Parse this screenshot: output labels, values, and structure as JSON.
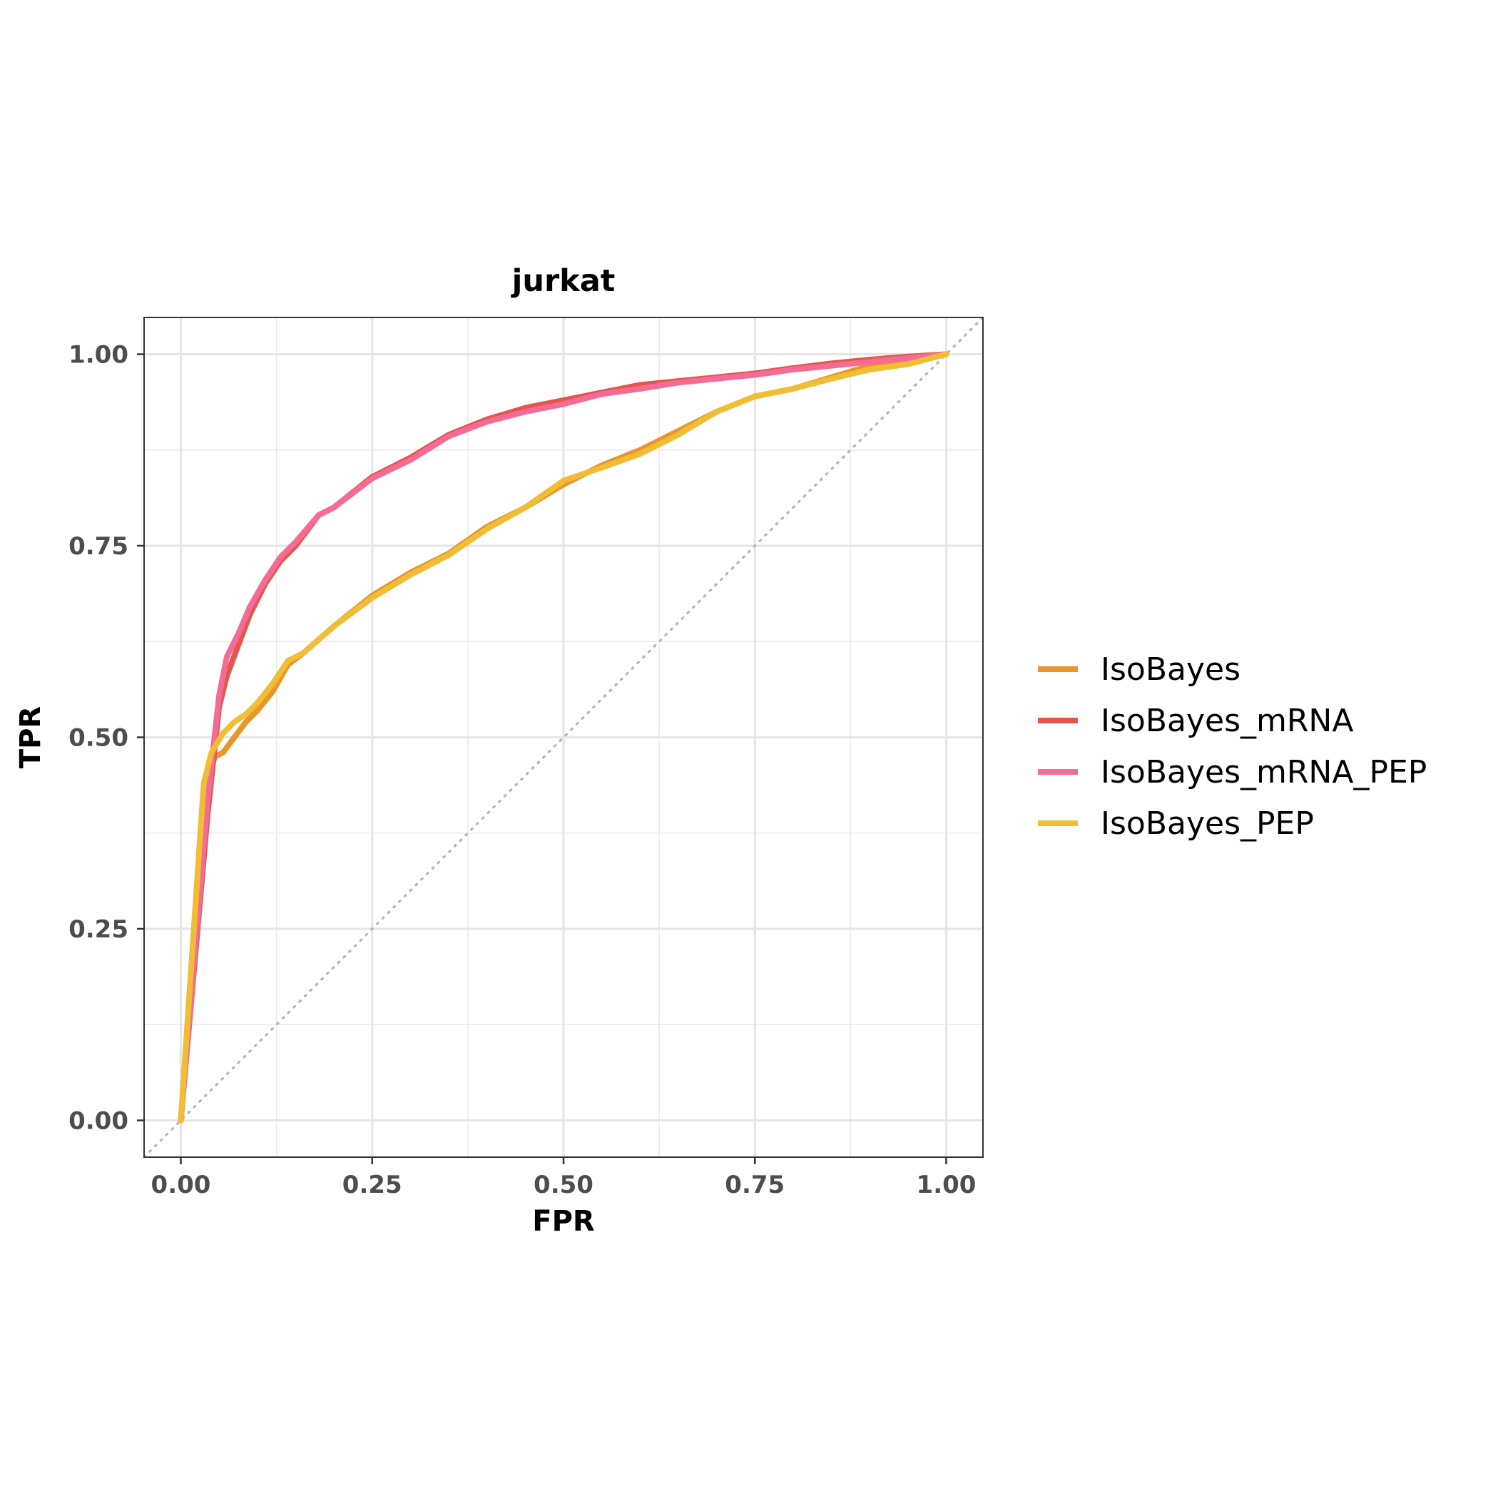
{
  "chart_data": {
    "type": "line",
    "title": "jurkat",
    "xlabel": "FPR",
    "ylabel": "TPR",
    "xlim": [
      -0.048,
      1.048
    ],
    "ylim": [
      -0.048,
      1.048
    ],
    "x_ticks": [
      0,
      0.25,
      0.5,
      0.75,
      1
    ],
    "x_tick_labels": [
      "0.00",
      "0.25",
      "0.50",
      "0.75",
      "1.00"
    ],
    "y_ticks": [
      0,
      0.25,
      0.5,
      0.75,
      1
    ],
    "y_tick_labels": [
      "0.00",
      "0.25",
      "0.50",
      "0.75",
      "1.00"
    ],
    "grid": true,
    "legend_position": "right",
    "diagonal_reference": {
      "x": [
        -0.048,
        1.048
      ],
      "y": [
        -0.048,
        1.048
      ],
      "color": "#b3b3b3",
      "style": "dotted"
    },
    "series": [
      {
        "name": "IsoBayes",
        "color": "#E8962A",
        "x": [
          0,
          0.03,
          0.045,
          0.055,
          0.07,
          0.085,
          0.1,
          0.12,
          0.14,
          0.16,
          0.2,
          0.25,
          0.3,
          0.35,
          0.4,
          0.45,
          0.5,
          0.55,
          0.6,
          0.65,
          0.7,
          0.75,
          0.8,
          0.85,
          0.9,
          0.95,
          1
        ],
        "y": [
          0,
          0.44,
          0.475,
          0.48,
          0.5,
          0.52,
          0.535,
          0.56,
          0.595,
          0.61,
          0.645,
          0.685,
          0.715,
          0.74,
          0.775,
          0.8,
          0.83,
          0.855,
          0.875,
          0.9,
          0.925,
          0.945,
          0.955,
          0.97,
          0.985,
          0.99,
          1
        ]
      },
      {
        "name": "IsoBayes_mRNA",
        "color": "#E5564A",
        "x": [
          0,
          0.035,
          0.05,
          0.06,
          0.075,
          0.09,
          0.11,
          0.13,
          0.15,
          0.18,
          0.2,
          0.25,
          0.3,
          0.35,
          0.4,
          0.45,
          0.5,
          0.55,
          0.6,
          0.65,
          0.7,
          0.75,
          0.8,
          0.85,
          0.9,
          0.95,
          1
        ],
        "y": [
          0,
          0.4,
          0.54,
          0.58,
          0.62,
          0.66,
          0.7,
          0.73,
          0.75,
          0.79,
          0.8,
          0.84,
          0.865,
          0.895,
          0.915,
          0.93,
          0.94,
          0.95,
          0.96,
          0.965,
          0.97,
          0.975,
          0.982,
          0.988,
          0.993,
          0.997,
          1
        ]
      },
      {
        "name": "IsoBayes_mRNA_PEP",
        "color": "#F46C96",
        "x": [
          0,
          0.035,
          0.05,
          0.06,
          0.075,
          0.09,
          0.11,
          0.13,
          0.15,
          0.18,
          0.2,
          0.25,
          0.3,
          0.35,
          0.4,
          0.45,
          0.5,
          0.55,
          0.6,
          0.65,
          0.7,
          0.75,
          0.8,
          0.85,
          0.9,
          0.95,
          1
        ],
        "y": [
          0,
          0.42,
          0.555,
          0.605,
          0.635,
          0.67,
          0.705,
          0.735,
          0.755,
          0.79,
          0.8,
          0.838,
          0.862,
          0.893,
          0.912,
          0.925,
          0.935,
          0.948,
          0.955,
          0.963,
          0.968,
          0.973,
          0.98,
          0.985,
          0.99,
          0.995,
          1
        ]
      },
      {
        "name": "IsoBayes_PEP",
        "color": "#F0BD34",
        "x": [
          0,
          0.03,
          0.04,
          0.055,
          0.07,
          0.085,
          0.1,
          0.12,
          0.14,
          0.16,
          0.2,
          0.25,
          0.3,
          0.35,
          0.4,
          0.45,
          0.5,
          0.55,
          0.6,
          0.65,
          0.7,
          0.75,
          0.8,
          0.85,
          0.9,
          0.95,
          1
        ],
        "y": [
          0,
          0.44,
          0.48,
          0.505,
          0.52,
          0.53,
          0.545,
          0.57,
          0.6,
          0.61,
          0.645,
          0.682,
          0.712,
          0.738,
          0.772,
          0.8,
          0.835,
          0.852,
          0.87,
          0.895,
          0.925,
          0.945,
          0.955,
          0.968,
          0.98,
          0.987,
          1
        ]
      }
    ]
  }
}
